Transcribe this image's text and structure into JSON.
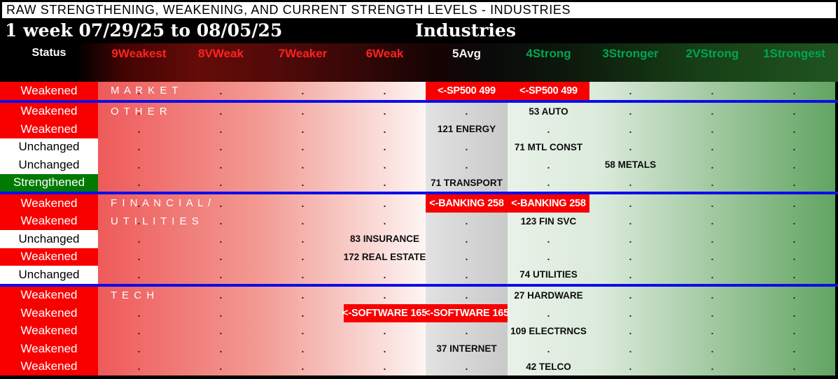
{
  "title": "RAW STRENGTHENING, WEAKENING, AND CURRENT STRENGTH LEVELS - INDUSTRIES",
  "header": {
    "period": "1 week 07/29/25 to 08/05/25",
    "table_title": "Industries",
    "status_label": "Status",
    "columns": [
      {
        "label": "9Weakest",
        "tone": "weak"
      },
      {
        "label": "8VWeak",
        "tone": "weak"
      },
      {
        "label": "7Weaker",
        "tone": "weak"
      },
      {
        "label": "6Weak",
        "tone": "weak"
      },
      {
        "label": "5Avg",
        "tone": "avg"
      },
      {
        "label": "4Strong",
        "tone": "strong"
      },
      {
        "label": "3Stronger",
        "tone": "strong"
      },
      {
        "label": "2VStrong",
        "tone": "strong"
      },
      {
        "label": "1Strongest",
        "tone": "strong"
      }
    ]
  },
  "colors": {
    "weakened_bg": "#f80000",
    "unchanged_bg": "#ffffff",
    "strengthened_bg": "#007a00",
    "highlight_bg": "#f80000",
    "separator_blue": "#0d0de8",
    "weak_header_text": "#ff2222",
    "avg_header_text": "#f2f2f2",
    "strong_header_text": "#00a651"
  },
  "sections": [
    {
      "name": "MARKET",
      "label_lines": [
        "M A R K E T"
      ],
      "rows": [
        {
          "status": "Weakened",
          "cells": [
            {
              "col": 5,
              "text": "<-SP500 499",
              "highlight": true
            },
            {
              "col": 6,
              "text": "<-SP500 499",
              "highlight": true
            }
          ]
        }
      ]
    },
    {
      "name": "OTHER",
      "label_lines": [
        "O T H E R"
      ],
      "rows": [
        {
          "status": "Weakened",
          "cells": [
            {
              "col": 6,
              "text": "53 AUTO"
            }
          ]
        },
        {
          "status": "Weakened",
          "cells": [
            {
              "col": 5,
              "text": "121 ENERGY"
            }
          ]
        },
        {
          "status": "Unchanged",
          "cells": [
            {
              "col": 6,
              "text": "71 MTL CONST"
            }
          ]
        },
        {
          "status": "Unchanged",
          "cells": [
            {
              "col": 7,
              "text": "58 METALS"
            }
          ]
        },
        {
          "status": "Strengthened",
          "cells": [
            {
              "col": 5,
              "text": "71 TRANSPORT"
            }
          ]
        }
      ]
    },
    {
      "name": "FINANCIAL/UTILITIES",
      "label_lines": [
        "F I N A N C I A L /",
        "U T I L I T I E S"
      ],
      "rows": [
        {
          "status": "Weakened",
          "cells": [
            {
              "col": 5,
              "text": "<-BANKING 258",
              "highlight": true
            },
            {
              "col": 6,
              "text": "<-BANKING 258",
              "highlight": true
            }
          ]
        },
        {
          "status": "Weakened",
          "cells": [
            {
              "col": 6,
              "text": "123 FIN SVC"
            }
          ]
        },
        {
          "status": "Unchanged",
          "cells": [
            {
              "col": 4,
              "text": "83 INSURANCE"
            }
          ]
        },
        {
          "status": "Weakened",
          "cells": [
            {
              "col": 4,
              "text": "172 REAL ESTATE"
            }
          ]
        },
        {
          "status": "Unchanged",
          "cells": [
            {
              "col": 6,
              "text": "74 UTILITIES"
            }
          ]
        }
      ]
    },
    {
      "name": "TECH",
      "label_lines": [
        "T E C H"
      ],
      "rows": [
        {
          "status": "Weakened",
          "cells": [
            {
              "col": 6,
              "text": "27 HARDWARE"
            }
          ]
        },
        {
          "status": "Weakened",
          "cells": [
            {
              "col": 4,
              "text": "<-SOFTWARE 165",
              "highlight": true
            },
            {
              "col": 5,
              "text": "<-SOFTWARE 165",
              "highlight": true
            }
          ]
        },
        {
          "status": "Weakened",
          "cells": [
            {
              "col": 6,
              "text": "109 ELECTRNCS"
            }
          ]
        },
        {
          "status": "Weakened",
          "cells": [
            {
              "col": 5,
              "text": "37 INTERNET"
            }
          ]
        },
        {
          "status": "Weakened",
          "cells": [
            {
              "col": 6,
              "text": "42 TELCO"
            }
          ]
        }
      ]
    }
  ]
}
